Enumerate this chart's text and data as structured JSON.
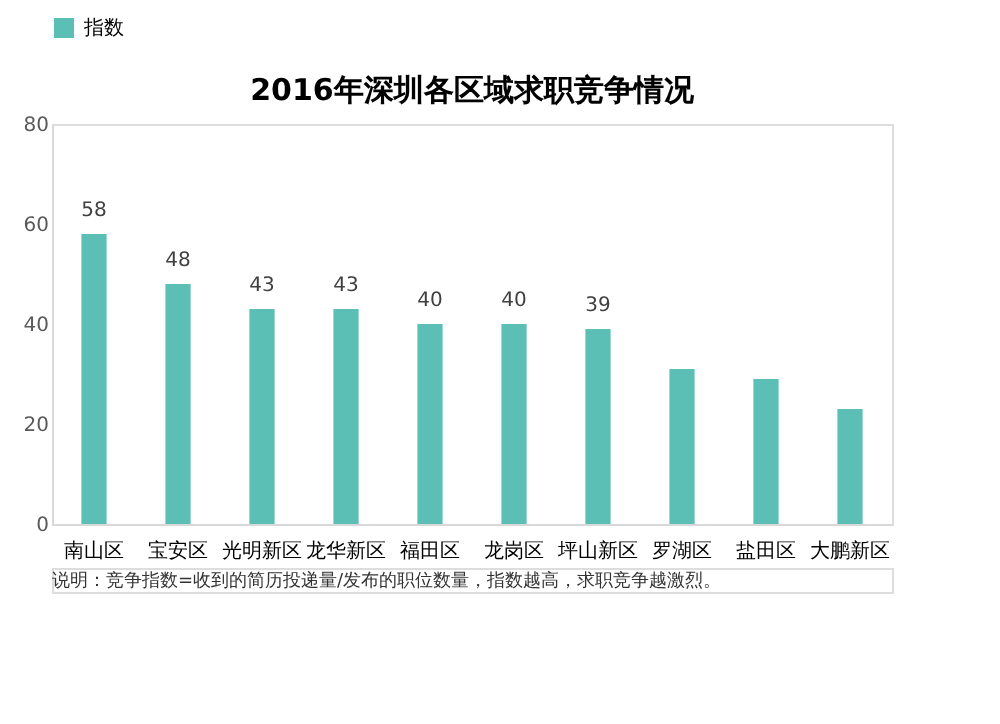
{
  "chart_data": {
    "type": "bar",
    "title": "2016年深圳各区域求职竞争情况",
    "categories": [
      "南山区",
      "宝安区",
      "光明新区",
      "龙华新区",
      "福田区",
      "龙岗区",
      "坪山新区",
      "罗湖区",
      "盐田区",
      "大鹏新区"
    ],
    "series": [
      {
        "name": "指数",
        "color": "#5bbfb5",
        "values": [
          58,
          48,
          43,
          43,
          40,
          40,
          39,
          31,
          29,
          23
        ]
      }
    ],
    "value_labels": [
      "58",
      "48",
      "43",
      "43",
      "40",
      "40",
      "39",
      null,
      null,
      null
    ],
    "ylim": [
      0,
      80
    ],
    "yticks": [
      0,
      20,
      40,
      60,
      80
    ],
    "grid": false,
    "legend": "top",
    "annotations": [
      "说明：竞争指数=收到的简历投递量/发布的职位数量，指数越高，求职竞争越激烈。"
    ]
  }
}
